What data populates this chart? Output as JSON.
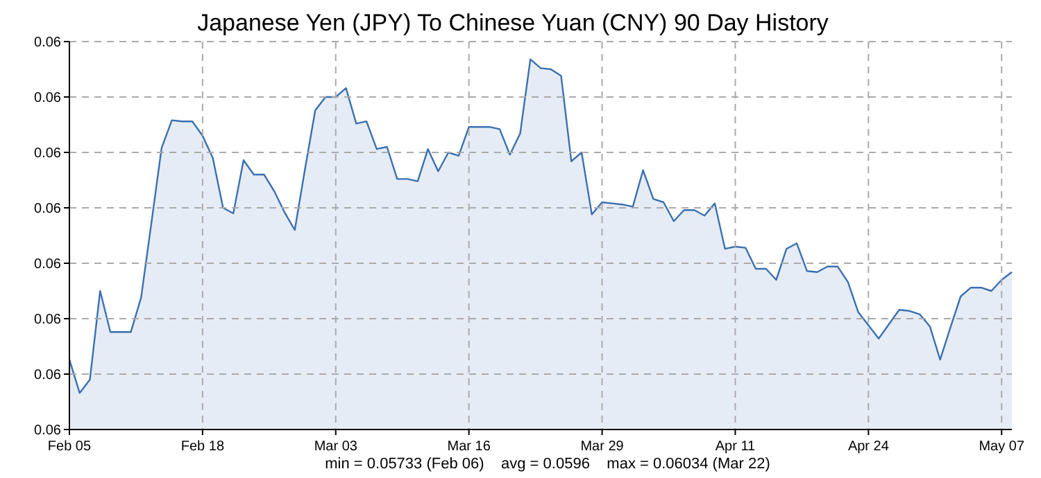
{
  "chart_data": {
    "type": "area",
    "title": "Japanese Yen (JPY) To Chinese Yuan (CNY) 90 Day History",
    "annotations": [
      "min = 0.05733 (Feb 06)    avg = 0.0596    max = 0.06034 (Mar 22)"
    ],
    "x": [
      "--02-05",
      "--02-06",
      "--02-07",
      "--02-08",
      "--02-09",
      "--02-10",
      "--02-11",
      "--02-12",
      "--02-13",
      "--02-14",
      "--02-15",
      "--02-16",
      "--02-17",
      "--02-18",
      "--02-19",
      "--02-20",
      "--02-21",
      "--02-22",
      "--02-23",
      "--02-24",
      "--02-25",
      "--02-26",
      "--02-27",
      "--02-28",
      "--03-01",
      "--03-02",
      "--03-03",
      "--03-04",
      "--03-05",
      "--03-06",
      "--03-07",
      "--03-08",
      "--03-09",
      "--03-10",
      "--03-11",
      "--03-12",
      "--03-13",
      "--03-14",
      "--03-15",
      "--03-16",
      "--03-17",
      "--03-18",
      "--03-19",
      "--03-20",
      "--03-21",
      "--03-22",
      "--03-23",
      "--03-24",
      "--03-25",
      "--03-26",
      "--03-27",
      "--03-28",
      "--03-29",
      "--03-30",
      "--03-31",
      "--04-01",
      "--04-02",
      "--04-03",
      "--04-04",
      "--04-05",
      "--04-06",
      "--04-07",
      "--04-08",
      "--04-09",
      "--04-10",
      "--04-11",
      "--04-12",
      "--04-13",
      "--04-14",
      "--04-15",
      "--04-16",
      "--04-17",
      "--04-18",
      "--04-19",
      "--04-20",
      "--04-21",
      "--04-22",
      "--04-23",
      "--04-24",
      "--04-25",
      "--04-26",
      "--04-27",
      "--04-28",
      "--04-29",
      "--04-30",
      "--05-01",
      "--05-02",
      "--05-03",
      "--05-04",
      "--05-05",
      "--05-06",
      "--05-07",
      "--05-08"
    ],
    "series": [
      {
        "color": "#3a70b0",
        "values": [
          0.05763,
          0.05733,
          0.05745,
          0.05825,
          0.05788,
          0.05788,
          0.05788,
          0.05819,
          0.05886,
          0.05954,
          0.05979,
          0.05978,
          0.05978,
          0.05965,
          0.05945,
          0.059,
          0.05895,
          0.05943,
          0.0593,
          0.0593,
          0.05915,
          0.05896,
          0.0588,
          0.05935,
          0.05988,
          0.06,
          0.06,
          0.06008,
          0.05976,
          0.05978,
          0.05953,
          0.05955,
          0.05926,
          0.05926,
          0.05924,
          0.05953,
          0.05933,
          0.0595,
          0.05947,
          0.05973,
          0.05973,
          0.05973,
          0.05971,
          0.05948,
          0.05967,
          0.06034,
          0.06026,
          0.06025,
          0.06019,
          0.05942,
          0.0595,
          0.05894,
          0.05905,
          0.05904,
          0.05903,
          0.05901,
          0.05934,
          0.05908,
          0.05905,
          0.05888,
          0.05898,
          0.05898,
          0.05893,
          0.05904,
          0.05863,
          0.05865,
          0.05864,
          0.05845,
          0.05845,
          0.05835,
          0.05863,
          0.05868,
          0.05843,
          0.05842,
          0.05847,
          0.05847,
          0.05833,
          0.05806,
          0.05794,
          0.05782,
          0.05795,
          0.05808,
          0.05807,
          0.05804,
          0.05793,
          0.05763,
          0.05792,
          0.0582,
          0.05828,
          0.05828,
          0.05825,
          0.05835,
          0.05842
        ]
      }
    ],
    "xlim": [
      "--02-05",
      "--05-08"
    ],
    "xticks": [
      {
        "value": "--02-05",
        "label": "Feb 05"
      },
      {
        "value": "--02-18",
        "label": "Feb 18"
      },
      {
        "value": "--03-03",
        "label": "Mar 03"
      },
      {
        "value": "--03-16",
        "label": "Mar 16"
      },
      {
        "value": "--03-29",
        "label": "Mar 29"
      },
      {
        "value": "--04-11",
        "label": "Apr 11"
      },
      {
        "value": "--04-24",
        "label": "Apr 24"
      },
      {
        "value": "--05-07",
        "label": "May 07"
      }
    ],
    "ylim": [
      0.057,
      0.0605
    ],
    "yticks": [
      {
        "value": 0.057,
        "label": "0.06"
      },
      {
        "value": 0.0575,
        "label": "0.06"
      },
      {
        "value": 0.058,
        "label": "0.06"
      },
      {
        "value": 0.0585,
        "label": "0.06"
      },
      {
        "value": 0.059,
        "label": "0.06"
      },
      {
        "value": 0.0595,
        "label": "0.06"
      },
      {
        "value": 0.06,
        "label": "0.06"
      },
      {
        "value": 0.0605,
        "label": "0.06"
      }
    ],
    "grid": true
  }
}
